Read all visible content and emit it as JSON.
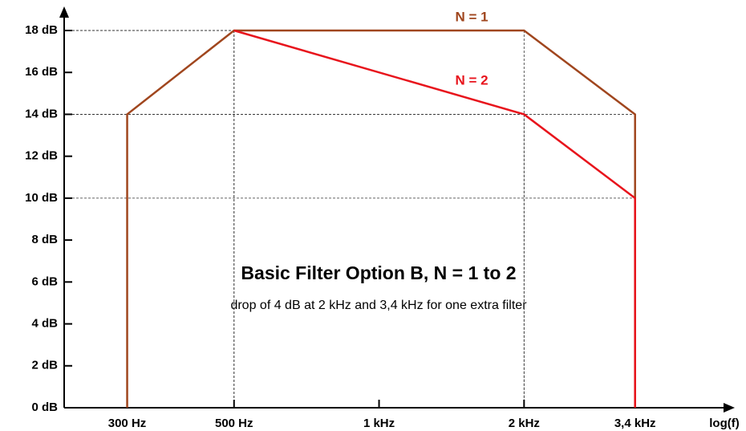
{
  "chart_data": {
    "type": "line",
    "title": "Basic Filter Option B, N = 1 to 2",
    "subtitle": "drop of 4 dB at 2 kHz and 3,4 kHz for one extra filter",
    "x_label": "log(f)",
    "log_x": true,
    "xlim": [
      222,
      5150
    ],
    "xticks": [
      {
        "value": 300,
        "label": "300 Hz"
      },
      {
        "value": 500,
        "label": "500 Hz"
      },
      {
        "value": 1000,
        "label": "1 kHz"
      },
      {
        "value": 2000,
        "label": "2 kHz"
      },
      {
        "value": 3400,
        "label": "3,4 kHz"
      }
    ],
    "ylim": [
      0,
      18
    ],
    "yticks": [
      {
        "value": 0,
        "label": "0 dB"
      },
      {
        "value": 2,
        "label": "2 dB"
      },
      {
        "value": 4,
        "label": "4 dB"
      },
      {
        "value": 6,
        "label": "6 dB"
      },
      {
        "value": 8,
        "label": "8 dB"
      },
      {
        "value": 10,
        "label": "10 dB"
      },
      {
        "value": 12,
        "label": "12 dB"
      },
      {
        "value": 14,
        "label": "14 dB"
      },
      {
        "value": 16,
        "label": "16 dB"
      },
      {
        "value": 18,
        "label": "18 dB"
      }
    ],
    "series": [
      {
        "name": "N = 1",
        "color": "#a0461e",
        "x": [
          300,
          300,
          500,
          2000,
          3400,
          3400
        ],
        "values": [
          0,
          14,
          18,
          18,
          14,
          0
        ]
      },
      {
        "name": "N = 2",
        "color": "#e8141c",
        "x": [
          500,
          2000,
          3400,
          3400
        ],
        "values": [
          18,
          14,
          10,
          0
        ]
      }
    ]
  }
}
